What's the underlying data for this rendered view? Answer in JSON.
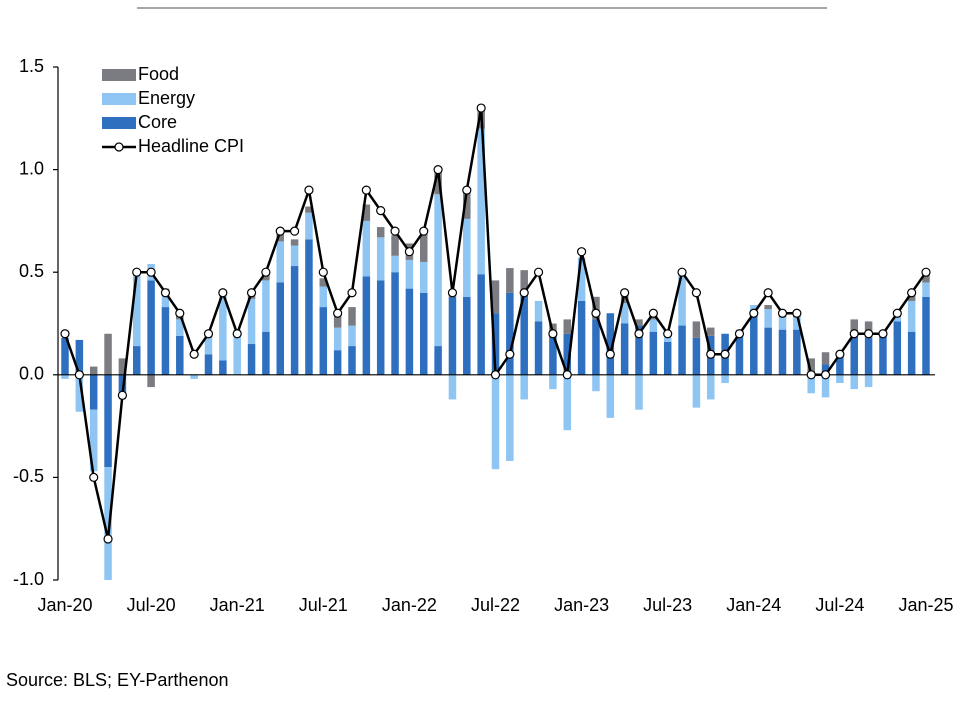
{
  "chart_data": {
    "type": "bar",
    "stacked": true,
    "categories": [
      "Jan-20",
      null,
      null,
      null,
      null,
      null,
      "Jul-20",
      null,
      null,
      null,
      null,
      null,
      "Jan-21",
      null,
      null,
      null,
      null,
      null,
      "Jul-21",
      null,
      null,
      null,
      null,
      null,
      "Jan-22",
      null,
      null,
      null,
      null,
      null,
      "Jul-22",
      null,
      null,
      null,
      null,
      null,
      "Jan-23",
      null,
      null,
      null,
      null,
      null,
      "Jul-23",
      null,
      null,
      null,
      null,
      null,
      "Jan-24",
      null,
      null,
      null,
      null,
      null,
      "Jul-24",
      null,
      null,
      null,
      null,
      null,
      "Jan-25"
    ],
    "series": [
      {
        "name": "Food",
        "type": "bar",
        "color": "#7b7b82",
        "values": [
          0.0,
          0.0,
          0.04,
          0.2,
          0.08,
          0.0,
          -0.06,
          0.02,
          0.03,
          0.0,
          0.01,
          0.0,
          0.0,
          0.02,
          0.05,
          0.04,
          0.03,
          0.03,
          0.04,
          0.06,
          0.09,
          0.08,
          0.05,
          0.1,
          0.08,
          0.16,
          0.12,
          0.03,
          0.14,
          0.1,
          0.16,
          0.12,
          0.12,
          0.0,
          0.05,
          0.07,
          0.0,
          0.11,
          0.0,
          0.05,
          0.03,
          0.03,
          0.02,
          0.0,
          0.08,
          0.04,
          0.0,
          0.0,
          0.0,
          0.02,
          0.02,
          0.02,
          0.08,
          0.06,
          0.0,
          0.07,
          0.08,
          0.0,
          0.02,
          0.03,
          0.04
        ]
      },
      {
        "name": "Energy",
        "type": "bar",
        "color": "#8ec5f2",
        "values": [
          -0.02,
          -0.18,
          -0.3,
          -0.55,
          -0.02,
          0.35,
          0.08,
          0.07,
          0.08,
          -0.02,
          0.08,
          0.32,
          0.22,
          0.22,
          0.25,
          0.2,
          0.1,
          0.13,
          0.1,
          0.11,
          0.1,
          0.27,
          0.21,
          0.08,
          0.14,
          0.15,
          0.74,
          -0.12,
          0.38,
          0.71,
          -0.46,
          -0.42,
          -0.12,
          0.1,
          -0.07,
          -0.27,
          0.21,
          -0.08,
          -0.21,
          0.1,
          -0.17,
          0.06,
          0.03,
          0.25,
          -0.16,
          -0.12,
          -0.04,
          0.02,
          0.04,
          0.09,
          0.06,
          0.06,
          -0.09,
          -0.11,
          -0.04,
          -0.07,
          -0.06,
          0.0,
          0.02,
          0.15,
          0.07
        ]
      },
      {
        "name": "Core",
        "type": "bar",
        "color": "#2f6fbf",
        "values": [
          0.18,
          0.17,
          -0.17,
          -0.45,
          -0.1,
          0.14,
          0.46,
          0.33,
          0.19,
          0.0,
          0.1,
          0.07,
          0.0,
          0.15,
          0.21,
          0.45,
          0.53,
          0.66,
          0.33,
          0.12,
          0.14,
          0.48,
          0.46,
          0.5,
          0.42,
          0.4,
          0.14,
          0.38,
          0.38,
          0.49,
          0.3,
          0.4,
          0.39,
          0.26,
          0.2,
          0.2,
          0.36,
          0.27,
          0.3,
          0.25,
          0.24,
          0.21,
          0.16,
          0.24,
          0.18,
          0.19,
          0.2,
          0.2,
          0.3,
          0.23,
          0.22,
          0.22,
          0.0,
          0.05,
          0.09,
          0.2,
          0.18,
          0.2,
          0.26,
          0.21,
          0.38
        ]
      },
      {
        "name": "Headline CPI",
        "type": "line",
        "color": "#000000",
        "values": [
          0.2,
          0.0,
          -0.5,
          -0.8,
          -0.1,
          0.5,
          0.5,
          0.4,
          0.3,
          0.1,
          0.2,
          0.4,
          0.2,
          0.4,
          0.5,
          0.7,
          0.7,
          0.9,
          0.5,
          0.3,
          0.4,
          0.9,
          0.8,
          0.7,
          0.6,
          0.7,
          1.0,
          0.4,
          0.9,
          1.3,
          0.0,
          0.1,
          0.4,
          0.5,
          0.2,
          0.0,
          0.6,
          0.3,
          0.1,
          0.4,
          0.2,
          0.3,
          0.2,
          0.5,
          0.4,
          0.1,
          0.1,
          0.2,
          0.3,
          0.4,
          0.3,
          0.3,
          0.0,
          0.0,
          0.1,
          0.2,
          0.2,
          0.2,
          0.3,
          0.4,
          0.5
        ]
      }
    ],
    "ylim": [
      -1.0,
      1.5
    ],
    "yticks": [
      {
        "value": 1.5,
        "label": "1.5"
      },
      {
        "value": 1.0,
        "label": "1.0"
      },
      {
        "value": 0.5,
        "label": "0.5"
      },
      {
        "value": 0,
        "label": "0.0"
      },
      {
        "value": -0.5,
        "label": "-0.5"
      },
      {
        "value": -1.0,
        "label": "-1.0"
      }
    ],
    "legend": "top-left",
    "source": "Source: BLS; EY-Parthenon"
  }
}
